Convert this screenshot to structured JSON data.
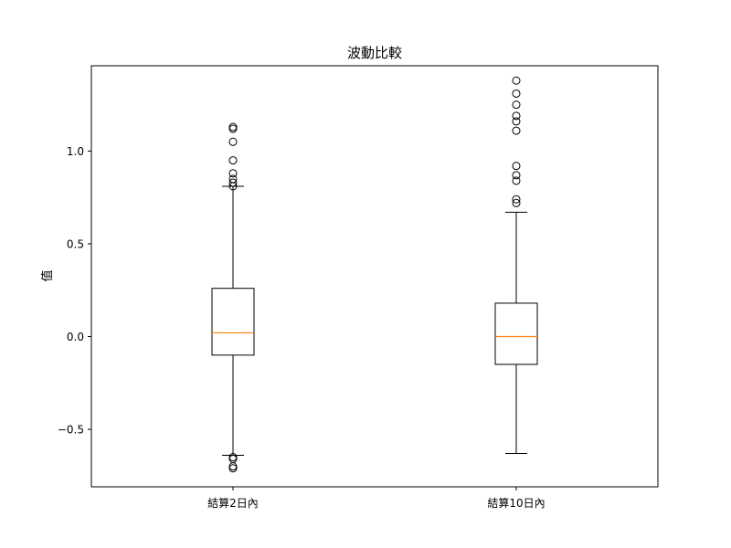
{
  "chart_data": {
    "type": "box",
    "title": "波動比較",
    "xlabel": "",
    "ylabel": "值",
    "ylim": [
      -0.81,
      1.46
    ],
    "yticks": [
      -0.5,
      0.0,
      0.5,
      1.0
    ],
    "ytick_labels": [
      "−0.5",
      "0.0",
      "0.5",
      "1.0"
    ],
    "grid": false,
    "categories": [
      "結算2日內",
      "結算10日內"
    ],
    "boxes": [
      {
        "name": "結算2日內",
        "whisker_low": -0.64,
        "q1": -0.1,
        "median": 0.02,
        "q3": 0.26,
        "whisker_high": 0.81,
        "outliers_high": [
          0.81,
          0.83,
          0.85,
          0.88,
          0.95,
          1.05,
          1.12,
          1.13
        ],
        "outliers_low": [
          -0.65,
          -0.66,
          -0.7,
          -0.71
        ]
      },
      {
        "name": "結算10日內",
        "whisker_low": -0.63,
        "q1": -0.15,
        "median": 0.0,
        "q3": 0.18,
        "whisker_high": 0.67,
        "outliers_high": [
          0.72,
          0.74,
          0.84,
          0.87,
          0.92,
          1.11,
          1.16,
          1.19,
          1.25,
          1.31,
          1.38
        ],
        "outliers_low": []
      }
    ],
    "colors": {
      "box": "#000000",
      "median": "#ff7f0e",
      "flier": "#000000"
    }
  }
}
